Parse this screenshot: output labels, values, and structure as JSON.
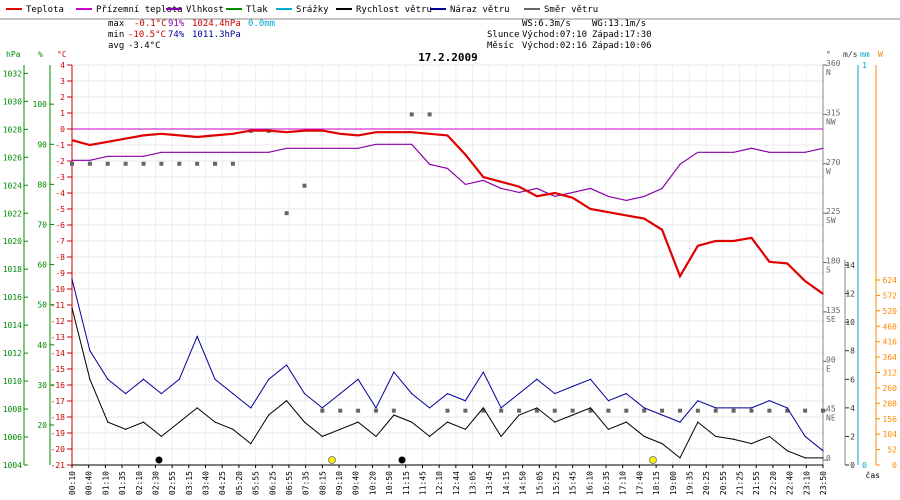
{
  "chart_data": {
    "type": "line",
    "title": "17.2.2009",
    "xlabel": "čas",
    "legend": [
      {
        "name": "Teplota",
        "color": "#e00000"
      },
      {
        "name": "Přízemní teplota",
        "color": "#cc00cc"
      },
      {
        "name": "Vlhkost",
        "color": "#8800aa"
      },
      {
        "name": "Tlak",
        "color": "#008800"
      },
      {
        "name": "Srážky",
        "color": "#00aacc"
      },
      {
        "name": "Rychlost větru",
        "color": "#000000"
      },
      {
        "name": "Náraz větru",
        "color": "#000099"
      },
      {
        "name": "Směr větru",
        "color": "#666666"
      }
    ],
    "stats": {
      "max_label": "max",
      "max_temp": "-0.1°C",
      "max_hum": "91%",
      "max_press": "1024.4hPa",
      "rain": "0.0mm",
      "min_label": "min",
      "min_temp": "-10.5°C",
      "min_hum": "74%",
      "min_press": "1011.3hPa",
      "avg_label": "avg",
      "avg_temp": "-3.4°C"
    },
    "wind_info": {
      "ws": "WS:6.3m/s",
      "wg": "WG:13.1m/s"
    },
    "astro": {
      "sun_label": "Slunce",
      "sunrise": "Východ:07:10",
      "sunset": "Západ:17:30",
      "moon_label": "Měsíc",
      "moonrise": "Východ:02:16",
      "moonset": "Západ:10:06"
    },
    "axes": {
      "hpa": {
        "label": "hPa",
        "color": "#008800",
        "ticks": [
          "1004",
          "1006",
          "1008",
          "1010",
          "1012",
          "1014",
          "1016",
          "1018",
          "1020",
          "1022",
          "1024",
          "1026",
          "1028",
          "1030",
          "1032"
        ]
      },
      "percent": {
        "label": "%",
        "color": "#008800",
        "ticks": [
          "20",
          "30",
          "40",
          "50",
          "60",
          "70",
          "80",
          "90",
          "100"
        ]
      },
      "celsius": {
        "label": "°C",
        "color": "#cc0000",
        "ticks": [
          "4",
          "3",
          "2",
          "1",
          "0",
          "-1",
          "-2",
          "-3",
          "-4",
          "-5",
          "-6",
          "-7",
          "-8",
          "-9",
          "-10",
          "-11",
          "-12",
          "-13",
          "-14",
          "-15",
          "-16",
          "-17",
          "-18",
          "-19",
          "-20",
          "-21"
        ]
      },
      "direction": {
        "label": "°",
        "ticks": [
          {
            "deg": "360",
            "dir": "N"
          },
          {
            "deg": "315",
            "dir": "NW"
          },
          {
            "deg": "270",
            "dir": "W"
          },
          {
            "deg": "225",
            "dir": "SW"
          },
          {
            "deg": "180",
            "dir": "S"
          },
          {
            "deg": "135",
            "dir": "SE"
          },
          {
            "deg": "90",
            "dir": "E"
          },
          {
            "deg": "45",
            "dir": "NE"
          },
          {
            "deg": "0",
            "dir": ""
          }
        ]
      },
      "speed": {
        "label": "m/s",
        "ticks": [
          "14",
          "12",
          "10",
          "8",
          "6",
          "4",
          "2",
          "0"
        ]
      },
      "rain": {
        "label": "mm",
        "color": "#00aacc",
        "ticks": [
          "1",
          "0"
        ]
      },
      "solar": {
        "label": "W",
        "color": "#ff8800",
        "ticks": [
          "624",
          "572",
          "520",
          "468",
          "416",
          "364",
          "312",
          "260",
          "208",
          "156",
          "104",
          "52",
          "0"
        ]
      }
    },
    "x_ticks": [
      "00:10",
      "00:40",
      "01:10",
      "01:35",
      "02:10",
      "02:30",
      "02:55",
      "03:15",
      "03:40",
      "04:25",
      "05:20",
      "05:55",
      "06:25",
      "06:55",
      "07:35",
      "08:15",
      "09:10",
      "09:40",
      "10:20",
      "10:50",
      "11:15",
      "11:45",
      "12:10",
      "12:44",
      "13:05",
      "13:45",
      "14:15",
      "14:50",
      "15:05",
      "15:25",
      "15:45",
      "16:10",
      "16:35",
      "17:10",
      "17:40",
      "18:15",
      "19:00",
      "19:35",
      "20:25",
      "20:55",
      "21:25",
      "21:55",
      "22:20",
      "22:40",
      "23:10",
      "23:50"
    ],
    "series": {
      "temperature_c": [
        -0.7,
        -1.0,
        -0.8,
        -0.6,
        -0.4,
        -0.3,
        -0.4,
        -0.5,
        -0.4,
        -0.3,
        -0.1,
        -0.1,
        -0.2,
        -0.1,
        -0.1,
        -0.3,
        -0.4,
        -0.2,
        -0.2,
        -0.2,
        -0.3,
        -0.4,
        -1.6,
        -3.0,
        -3.3,
        -3.6,
        -4.2,
        -4.0,
        -4.3,
        -5.0,
        -5.2,
        -5.4,
        -5.6,
        -6.3,
        -9.2,
        -7.3,
        -7.0,
        -7.0,
        -6.8,
        -8.3,
        -8.4,
        -9.5,
        -10.3
      ],
      "ground_temp_c": [
        0
      ],
      "humidity_pct": [
        86,
        86,
        87,
        87,
        87,
        88,
        88,
        88,
        88,
        88,
        88,
        88,
        89,
        89,
        89,
        89,
        89,
        90,
        90,
        90,
        85,
        84,
        80,
        81,
        79,
        78,
        79,
        77,
        78,
        79,
        77,
        76,
        77,
        79,
        85,
        88,
        88,
        88,
        89,
        88,
        88,
        88,
        89
      ],
      "wind_speed_ms": [
        11,
        6,
        3,
        2.5,
        3,
        2,
        3,
        4,
        3,
        2.5,
        1.5,
        3.5,
        4.5,
        3,
        2,
        2.5,
        3,
        2,
        3.5,
        3,
        2,
        3,
        2.5,
        4,
        2,
        3.5,
        4,
        3,
        3.5,
        4,
        2.5,
        3,
        2,
        1.5,
        0.5,
        3,
        2,
        1.8,
        1.5,
        2,
        1,
        0.5,
        0.5
      ],
      "wind_gust_ms": [
        13,
        8,
        6,
        5,
        6,
        5,
        6,
        9,
        6,
        5,
        4,
        6,
        7,
        5,
        4,
        5,
        6,
        4,
        6.5,
        5,
        4,
        5,
        4.5,
        6.5,
        4,
        5,
        6,
        5,
        5.5,
        6,
        4.5,
        5,
        4,
        3.5,
        3,
        4.5,
        4,
        4,
        4,
        4.5,
        4,
        2,
        1
      ],
      "wind_dir_deg": [
        270,
        270,
        270,
        270,
        270,
        270,
        270,
        270,
        270,
        270,
        300,
        300,
        225,
        250,
        45,
        45,
        45,
        45,
        45,
        315,
        315,
        45,
        45,
        45,
        45,
        45,
        45,
        45,
        45,
        45,
        45,
        45,
        45,
        45,
        45,
        45,
        45,
        45,
        45,
        45,
        45,
        45,
        45
      ]
    }
  }
}
